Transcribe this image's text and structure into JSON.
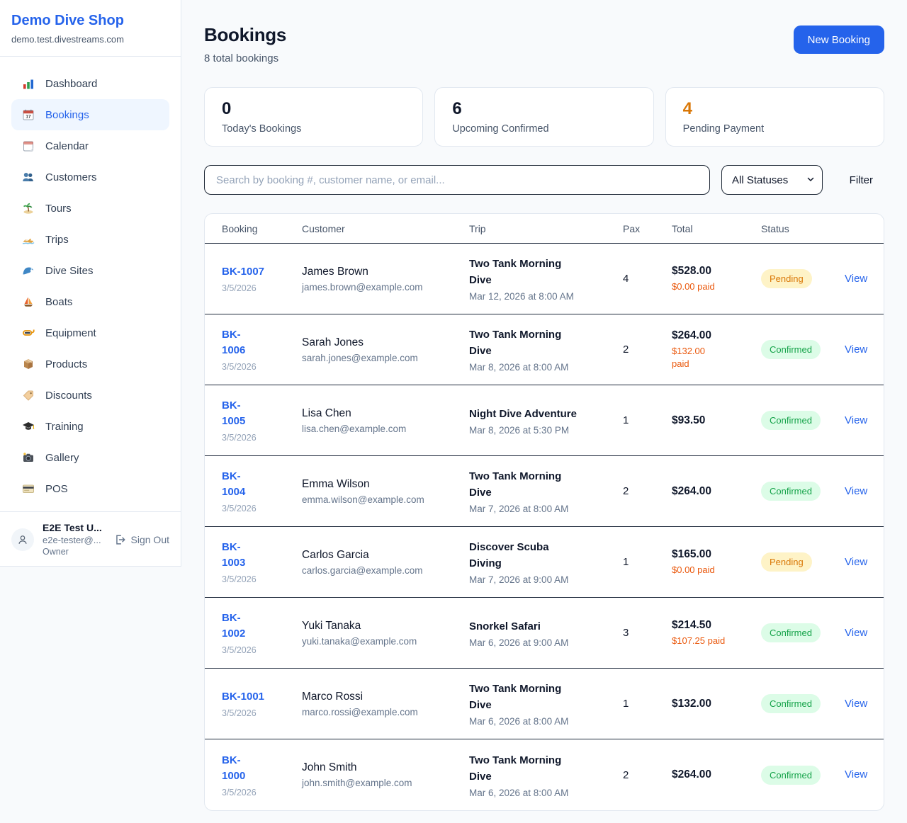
{
  "sidebar": {
    "brand": "Demo Dive Shop",
    "domain": "demo.test.divestreams.com",
    "items": [
      {
        "label": "Dashboard",
        "icon": "bar-chart"
      },
      {
        "label": "Bookings",
        "icon": "calendar-date",
        "active": true
      },
      {
        "label": "Calendar",
        "icon": "calendar"
      },
      {
        "label": "Customers",
        "icon": "people"
      },
      {
        "label": "Tours",
        "icon": "island"
      },
      {
        "label": "Trips",
        "icon": "speedboat"
      },
      {
        "label": "Dive Sites",
        "icon": "wave"
      },
      {
        "label": "Boats",
        "icon": "sailboat"
      },
      {
        "label": "Equipment",
        "icon": "diving-mask"
      },
      {
        "label": "Products",
        "icon": "package"
      },
      {
        "label": "Discounts",
        "icon": "tag"
      },
      {
        "label": "Training",
        "icon": "graduation-cap"
      },
      {
        "label": "Gallery",
        "icon": "camera"
      },
      {
        "label": "POS",
        "icon": "credit-card"
      }
    ],
    "user": {
      "name": "E2E Test U...",
      "email": "e2e-tester@...",
      "role": "Owner",
      "sign_out": "Sign Out"
    }
  },
  "header": {
    "title": "Bookings",
    "subtitle": "8 total bookings",
    "new_booking": "New Booking"
  },
  "stats": {
    "0": {
      "value": "0",
      "label": "Today's Bookings"
    },
    "1": {
      "value": "6",
      "label": "Upcoming Confirmed"
    },
    "2": {
      "value": "4",
      "label": "Pending Payment",
      "highlight": true
    }
  },
  "controls": {
    "search_placeholder": "Search by booking #, customer name, or email...",
    "status_filter_selected": "All Statuses",
    "filter_label": "Filter"
  },
  "table": {
    "columns": {
      "0": "Booking",
      "1": "Customer",
      "2": "Trip",
      "3": "Pax",
      "4": "Total",
      "5": "Status"
    },
    "rows": [
      {
        "id_lines": [
          "BK-1007"
        ],
        "date": "3/5/2026",
        "customer": "James Brown",
        "email": "james.brown@example.com",
        "trip_lines": [
          "Two Tank Morning",
          "Dive"
        ],
        "trip_datetime": "Mar 12, 2026 at 8:00 AM",
        "pax": "4",
        "total": "$528.00",
        "paid_lines": [
          "$0.00 paid"
        ],
        "status": "Pending",
        "view": "View"
      },
      {
        "id_lines": [
          "BK-",
          "1006"
        ],
        "date": "3/5/2026",
        "customer": "Sarah Jones",
        "email": "sarah.jones@example.com",
        "trip_lines": [
          "Two Tank Morning",
          "Dive"
        ],
        "trip_datetime": "Mar 8, 2026 at 8:00 AM",
        "pax": "2",
        "total": "$264.00",
        "paid_lines": [
          "$132.00",
          "paid"
        ],
        "status": "Confirmed",
        "view": "View"
      },
      {
        "id_lines": [
          "BK-",
          "1005"
        ],
        "date": "3/5/2026",
        "customer": "Lisa Chen",
        "email": "lisa.chen@example.com",
        "trip_lines": [
          "Night Dive Adventure"
        ],
        "trip_datetime": "Mar 8, 2026 at 5:30 PM",
        "pax": "1",
        "total": "$93.50",
        "paid_lines": [],
        "status": "Confirmed",
        "view": "View"
      },
      {
        "id_lines": [
          "BK-",
          "1004"
        ],
        "date": "3/5/2026",
        "customer": "Emma Wilson",
        "email": "emma.wilson@example.com",
        "trip_lines": [
          "Two Tank Morning",
          "Dive"
        ],
        "trip_datetime": "Mar 7, 2026 at 8:00 AM",
        "pax": "2",
        "total": "$264.00",
        "paid_lines": [],
        "status": "Confirmed",
        "view": "View"
      },
      {
        "id_lines": [
          "BK-",
          "1003"
        ],
        "date": "3/5/2026",
        "customer": "Carlos Garcia",
        "email": "carlos.garcia@example.com",
        "trip_lines": [
          "Discover Scuba",
          "Diving"
        ],
        "trip_datetime": "Mar 7, 2026 at 9:00 AM",
        "pax": "1",
        "total": "$165.00",
        "paid_lines": [
          "$0.00 paid"
        ],
        "status": "Pending",
        "view": "View"
      },
      {
        "id_lines": [
          "BK-",
          "1002"
        ],
        "date": "3/5/2026",
        "customer": "Yuki Tanaka",
        "email": "yuki.tanaka@example.com",
        "trip_lines": [
          "Snorkel Safari"
        ],
        "trip_datetime": "Mar 6, 2026 at 9:00 AM",
        "pax": "3",
        "total": "$214.50",
        "paid_lines": [
          "$107.25 paid"
        ],
        "status": "Confirmed",
        "view": "View"
      },
      {
        "id_lines": [
          "BK-1001"
        ],
        "date": "3/5/2026",
        "customer": "Marco Rossi",
        "email": "marco.rossi@example.com",
        "trip_lines": [
          "Two Tank Morning",
          "Dive"
        ],
        "trip_datetime": "Mar 6, 2026 at 8:00 AM",
        "pax": "1",
        "total": "$132.00",
        "paid_lines": [],
        "status": "Confirmed",
        "view": "View"
      },
      {
        "id_lines": [
          "BK-",
          "1000"
        ],
        "date": "3/5/2026",
        "customer": "John Smith",
        "email": "john.smith@example.com",
        "trip_lines": [
          "Two Tank Morning",
          "Dive"
        ],
        "trip_datetime": "Mar 6, 2026 at 8:00 AM",
        "pax": "2",
        "total": "$264.00",
        "paid_lines": [],
        "status": "Confirmed",
        "view": "View"
      }
    ]
  },
  "colors": {
    "accent_blue": "#2563eb",
    "pending_text": "#d97706",
    "pending_bg": "#fef3c7",
    "confirmed_text": "#16a34a",
    "confirmed_bg": "#dcfce7",
    "paid_orange": "#ea580c",
    "page_bg": "#f8fafc",
    "row_divider": "#1e293b"
  }
}
